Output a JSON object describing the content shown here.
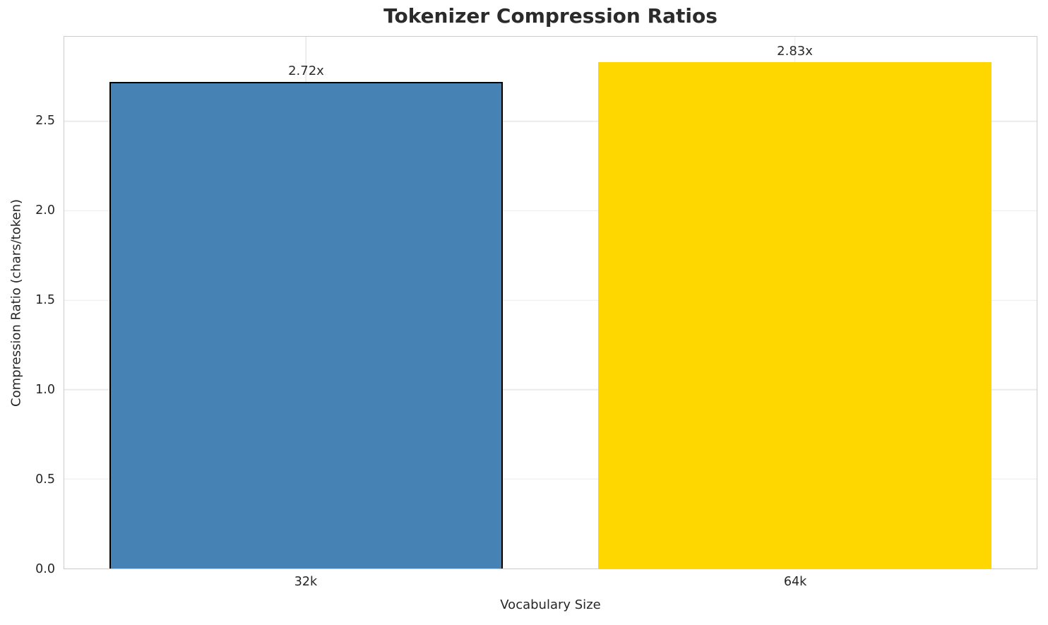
{
  "chart_data": {
    "type": "bar",
    "title": "Tokenizer Compression Ratios",
    "xlabel": "Vocabulary Size",
    "ylabel": "Compression Ratio (chars/token)",
    "categories": [
      "32k",
      "64k"
    ],
    "values": [
      2.72,
      2.83
    ],
    "bar_labels": [
      "2.72x",
      "2.83x"
    ],
    "bar_colors": [
      "#4682b4",
      "#ffd700"
    ],
    "bar_edge_colors": [
      "#000000",
      "none"
    ],
    "yticks": [
      0.0,
      0.5,
      1.0,
      1.5,
      2.0,
      2.5
    ],
    "ytick_labels": [
      "0.0",
      "0.5",
      "1.0",
      "1.5",
      "2.0",
      "2.5"
    ],
    "ylim": [
      0,
      2.973
    ],
    "grid": true,
    "legend": "none",
    "layout": {
      "bar_centers_pct": [
        24.87,
        75.13
      ],
      "bar_width_pct": 40.46
    }
  }
}
